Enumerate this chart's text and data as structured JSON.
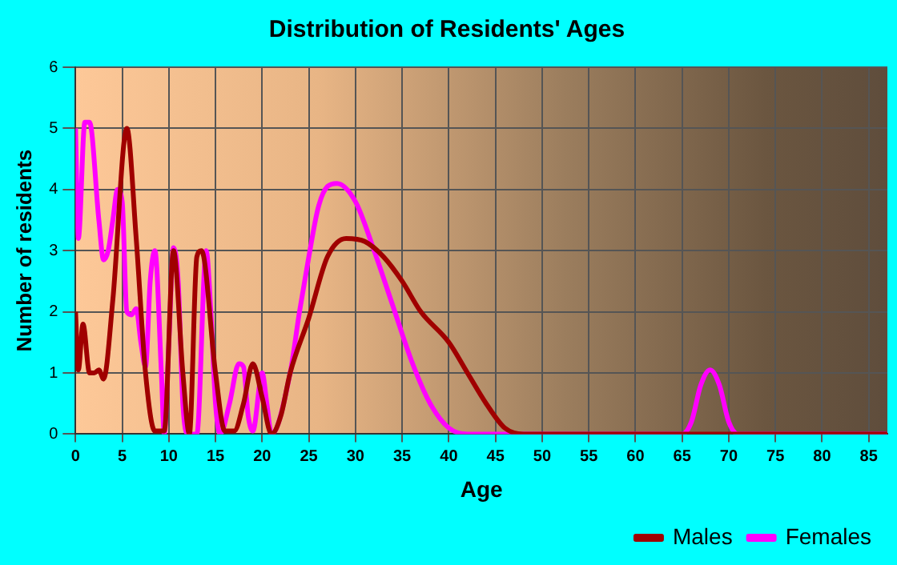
{
  "chart_data": {
    "type": "line",
    "title": "Distribution of Residents' Ages",
    "xlabel": "Age",
    "ylabel": "Number of residents",
    "xlim": [
      0,
      87
    ],
    "xticks": [
      0,
      5,
      10,
      15,
      20,
      25,
      30,
      35,
      40,
      45,
      50,
      55,
      60,
      65,
      70,
      75,
      80,
      85
    ],
    "ylim": [
      0,
      6
    ],
    "yticks": [
      0,
      1,
      2,
      3,
      4,
      5,
      6
    ],
    "grid": true,
    "legend": "bottom right",
    "marker": "none",
    "line_style": "solid",
    "series": [
      {
        "name": "Males",
        "color": "#a00000",
        "x": [
          0,
          0.3,
          0.8,
          1.5,
          2,
          2.5,
          3,
          4,
          5.5,
          6.5,
          7.5,
          8.5,
          9.5,
          10.5,
          11.5,
          12.2,
          13,
          13.5,
          15,
          16,
          17,
          18,
          19,
          20,
          21,
          22,
          23,
          25,
          27,
          29,
          31,
          33,
          35,
          37,
          40,
          42,
          44,
          46,
          48,
          87
        ],
        "values": [
          2,
          1.05,
          1.8,
          1,
          1,
          1.05,
          0.9,
          2.2,
          5,
          3.2,
          1,
          0.05,
          0.05,
          3,
          1,
          0,
          2.9,
          3,
          1,
          0.05,
          0.05,
          0.5,
          1.15,
          0.6,
          0,
          0.3,
          1,
          1.9,
          2.9,
          3.2,
          3.15,
          2.9,
          2.5,
          2,
          1.5,
          1,
          0.5,
          0.1,
          0,
          0
        ]
      },
      {
        "name": "Females",
        "color": "#ff00ff",
        "x": [
          0,
          0.3,
          1,
          1.5,
          2.5,
          3,
          3.5,
          4,
          4.5,
          5,
          5.5,
          6,
          6.5,
          7,
          7.5,
          8,
          8.5,
          9.2,
          9.5,
          10,
          10.5,
          11,
          11.5,
          12,
          13,
          14,
          14.5,
          15,
          15.5,
          16.5,
          17.5,
          18,
          18.5,
          19,
          20,
          20.5,
          21,
          23,
          24,
          25,
          26,
          27,
          28,
          30,
          32,
          34,
          36,
          38,
          40,
          42,
          65,
          66,
          67,
          68,
          69,
          70,
          71,
          87
        ],
        "values": [
          5,
          3.2,
          5.1,
          5.1,
          3.5,
          2.85,
          3,
          3.5,
          4,
          3.8,
          2,
          1.95,
          2.05,
          1.5,
          1.1,
          2.5,
          3,
          1,
          0,
          1.5,
          3.05,
          2.5,
          0.5,
          0,
          0,
          3,
          2,
          0.5,
          0,
          0.5,
          1.15,
          1.1,
          0.3,
          0.05,
          1,
          0.5,
          0,
          1,
          2,
          2.9,
          3.7,
          4.05,
          4.1,
          3.8,
          3,
          2.1,
          1.2,
          0.5,
          0.1,
          0,
          0,
          0.2,
          0.8,
          1.05,
          0.8,
          0.2,
          0,
          0
        ]
      }
    ]
  }
}
